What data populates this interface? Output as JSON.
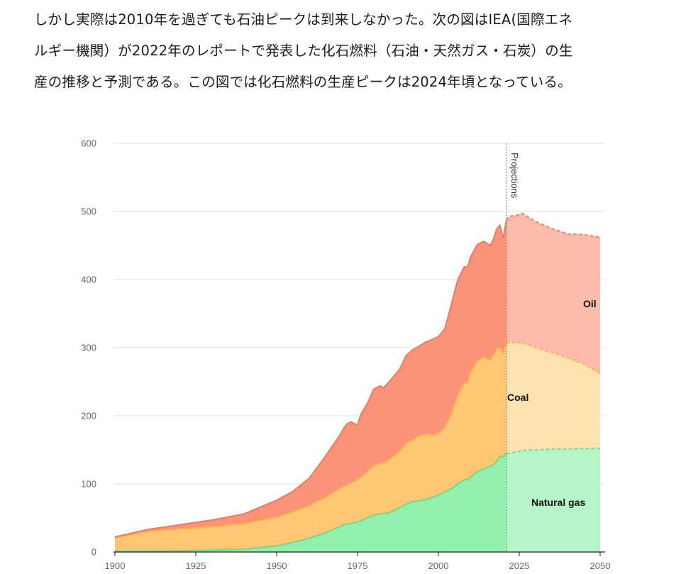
{
  "paragraph": {
    "lines": [
      "しかし実際は2010年を過ぎても石油ピークは到来しなかった。次の図はIEA(国際エネ",
      "ルギー機関）が2022年のレポートで発表した化石燃料（石油・天然ガス・石炭）の生",
      "産の推移と予測である。この図では化石燃料の生産ピークは2024年頃となっている。"
    ]
  },
  "chart_data": {
    "type": "area",
    "stacked": true,
    "title": "",
    "xlabel": "",
    "ylabel": "",
    "xlim": [
      1900,
      2050
    ],
    "ylim": [
      0,
      600
    ],
    "x_ticks": [
      1900,
      1925,
      1950,
      1975,
      2000,
      2025,
      2050
    ],
    "y_ticks": [
      0,
      100,
      200,
      300,
      400,
      500,
      600
    ],
    "grid": true,
    "projection_start": 2021,
    "projection_label": "Projections",
    "x": [
      1900,
      1910,
      1920,
      1930,
      1940,
      1950,
      1955,
      1960,
      1965,
      1970,
      1971,
      1972,
      1973,
      1975,
      1976,
      1978,
      1980,
      1982,
      1983,
      1985,
      1988,
      1990,
      1992,
      1994,
      1996,
      1998,
      2000,
      2002,
      2004,
      2006,
      2008,
      2009,
      2010,
      2012,
      2014,
      2016,
      2017,
      2018,
      2019,
      2020,
      2021,
      2022,
      2024,
      2026,
      2030,
      2035,
      2040,
      2045,
      2050
    ],
    "series": [
      {
        "name": "Natural gas",
        "color": "#92f0ac",
        "proj_color": "#b5f5c9",
        "values": [
          1,
          1,
          2,
          3,
          4,
          9,
          14,
          20,
          28,
          38,
          41,
          41,
          42,
          44,
          46,
          50,
          54,
          56,
          56,
          58,
          65,
          70,
          74,
          75,
          77,
          80,
          84,
          88,
          93,
          100,
          106,
          106,
          110,
          118,
          122,
          126,
          128,
          133,
          140,
          140,
          145,
          145,
          147,
          149,
          150,
          151,
          151,
          152,
          152
        ]
      },
      {
        "name": "Coal",
        "color": "#fec774",
        "proj_color": "#fde3b0",
        "values": [
          20,
          29,
          32,
          34,
          38,
          42,
          45,
          48,
          52,
          57,
          56,
          58,
          59,
          62,
          64,
          68,
          73,
          74,
          75,
          78,
          83,
          90,
          90,
          95,
          96,
          92,
          90,
          95,
          110,
          130,
          143,
          142,
          154,
          162,
          165,
          156,
          160,
          166,
          160,
          152,
          162,
          163,
          160,
          158,
          150,
          142,
          134,
          124,
          110
        ]
      },
      {
        "name": "Oil",
        "color": "#fa9377",
        "proj_color": "#fdbcab",
        "values": [
          1,
          3,
          6,
          10,
          14,
          25,
          30,
          40,
          60,
          80,
          87,
          90,
          90,
          80,
          92,
          100,
          112,
          114,
          110,
          115,
          120,
          128,
          133,
          132,
          135,
          140,
          142,
          145,
          160,
          170,
          170,
          170,
          170,
          171,
          169,
          168,
          171,
          175,
          180,
          168,
          180,
          185,
          187,
          190,
          185,
          182,
          182,
          190,
          200
        ]
      }
    ],
    "labels": [
      {
        "series": "Oil",
        "text": "Oil"
      },
      {
        "series": "Coal",
        "text": "Coal"
      },
      {
        "series": "Natural gas",
        "text": "Natural gas"
      }
    ],
    "line_color": "#f07a5a"
  }
}
